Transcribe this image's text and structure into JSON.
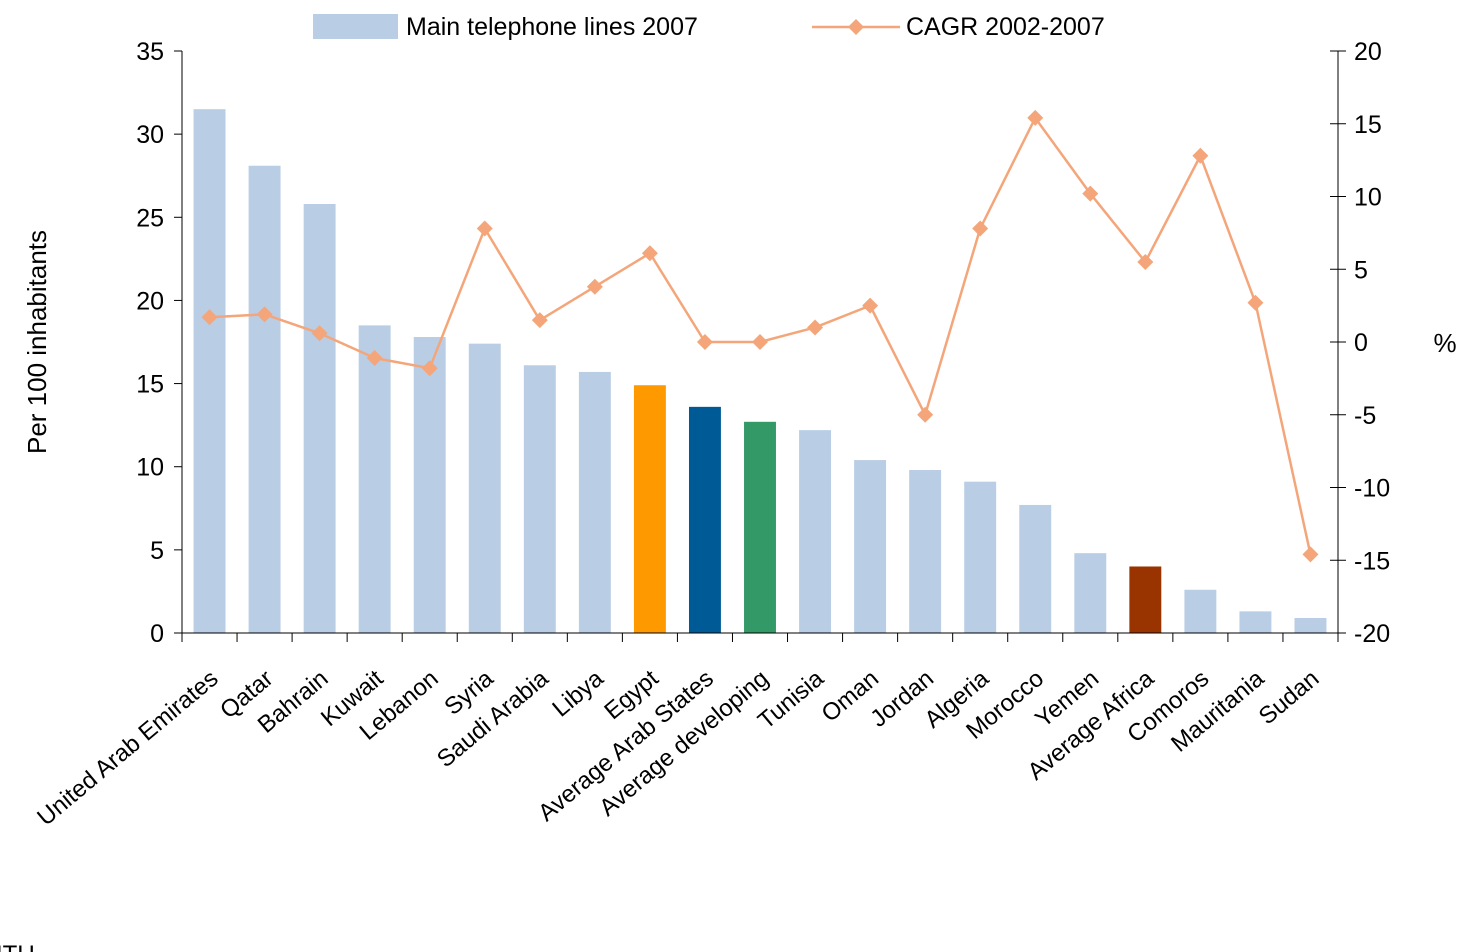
{
  "chart_data": {
    "type": "bar",
    "categories": [
      "United Arab Emirates",
      "Qatar",
      "Bahrain",
      "Kuwait",
      "Lebanon",
      "Syria",
      "Saudi Arabia",
      "Libya",
      "Egypt",
      "Average Arab States",
      "Average developing",
      "Tunisia",
      "Oman",
      "Jordan",
      "Algeria",
      "Morocco",
      "Yemen",
      "Average Africa",
      "Comoros",
      "Mauritania",
      "Sudan"
    ],
    "series": [
      {
        "name": "Main telephone lines 2007",
        "type": "bar",
        "axis": "left",
        "color": "#b9cde5",
        "values": [
          31.5,
          28.1,
          25.8,
          18.5,
          17.8,
          17.4,
          16.1,
          15.7,
          14.9,
          13.6,
          12.7,
          12.2,
          10.4,
          9.8,
          9.1,
          7.7,
          4.8,
          4.0,
          2.6,
          1.3,
          0.9
        ],
        "point_colors": {
          "8": "#ff9900",
          "9": "#005a96",
          "10": "#339966",
          "17": "#993300"
        }
      },
      {
        "name": "CAGR 2002-2007",
        "type": "line",
        "axis": "right",
        "color": "#f4a67a",
        "values": [
          1.7,
          1.9,
          0.6,
          -1.1,
          -1.8,
          7.8,
          1.5,
          3.8,
          6.1,
          0.0,
          0.0,
          1.0,
          2.5,
          -5.0,
          7.8,
          15.4,
          10.2,
          5.5,
          12.8,
          2.7,
          -14.6
        ]
      }
    ],
    "left_axis": {
      "label": "Per 100 inhabitants",
      "min": 0,
      "max": 35,
      "step": 5,
      "ticks": [
        "0",
        "5",
        "10",
        "15",
        "20",
        "25",
        "30",
        "35"
      ]
    },
    "right_axis": {
      "label": "%",
      "min": -20,
      "max": 20,
      "step": 5,
      "ticks": [
        "-20",
        "-15",
        "-10",
        "-5",
        "0",
        "5",
        "10",
        "15",
        "20"
      ]
    },
    "legend_position": "top",
    "grid": false,
    "source_note": "ITU"
  }
}
